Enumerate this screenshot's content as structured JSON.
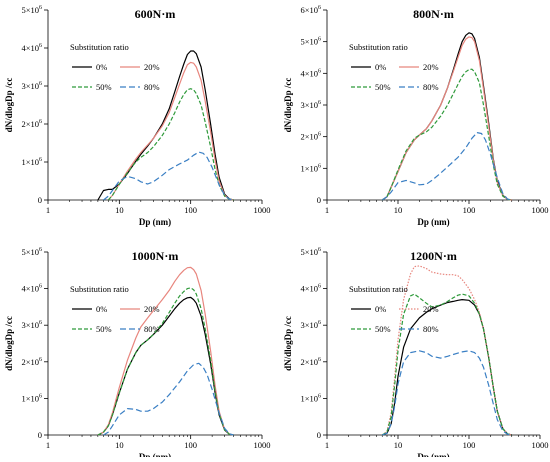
{
  "chart_data": [
    {
      "type": "line",
      "title": "600N·m",
      "xlabel": "Dp (nm)",
      "ylabel": "dN/dlogDp /cc",
      "xscale": "log",
      "xlim": [
        1,
        1000
      ],
      "ylim": [
        0,
        5000000
      ],
      "xticks": [
        "1",
        "10",
        "100",
        "1000"
      ],
      "ymax_tick": 5,
      "grid": false,
      "legend": {
        "title": "Substitution ratio",
        "placement": "top-left"
      },
      "series": [
        {
          "name": "0%",
          "color": "#000000",
          "dash": "solid",
          "x": [
            5,
            6,
            7,
            8,
            10,
            13,
            17,
            20,
            25,
            30,
            40,
            50,
            60,
            70,
            80,
            90,
            100,
            110,
            120,
            140,
            160,
            190,
            220,
            250,
            300,
            350,
            400
          ],
          "y": [
            0,
            250000,
            280000,
            280000,
            420000,
            700000,
            1020000,
            1200000,
            1420000,
            1620000,
            2000000,
            2400000,
            2850000,
            3250000,
            3580000,
            3830000,
            3920000,
            3920000,
            3850000,
            3500000,
            2900000,
            2000000,
            1200000,
            600000,
            150000,
            30000,
            0
          ]
        },
        {
          "name": "20%",
          "color": "#e8867e",
          "dash": "solid",
          "x": [
            7,
            8,
            10,
            13,
            17,
            20,
            25,
            30,
            40,
            50,
            60,
            70,
            80,
            90,
            100,
            110,
            120,
            140,
            160,
            190,
            220,
            250,
            300,
            350,
            400
          ],
          "y": [
            0,
            120000,
            420000,
            760000,
            1080000,
            1250000,
            1450000,
            1620000,
            1950000,
            2300000,
            2700000,
            3050000,
            3350000,
            3560000,
            3620000,
            3600000,
            3500000,
            3150000,
            2600000,
            1800000,
            1050000,
            500000,
            120000,
            20000,
            0
          ]
        },
        {
          "name": "50%",
          "color": "#2e9a3a",
          "dash": "4,2",
          "x": [
            7,
            8,
            10,
            13,
            17,
            20,
            25,
            30,
            40,
            50,
            60,
            70,
            80,
            90,
            100,
            110,
            120,
            140,
            160,
            190,
            220,
            250,
            300,
            350,
            400
          ],
          "y": [
            0,
            120000,
            410000,
            720000,
            1000000,
            1120000,
            1250000,
            1400000,
            1700000,
            2000000,
            2300000,
            2580000,
            2780000,
            2900000,
            2930000,
            2900000,
            2800000,
            2500000,
            2050000,
            1400000,
            800000,
            400000,
            100000,
            20000,
            0
          ]
        },
        {
          "name": "80%",
          "color": "#3a7fc4",
          "dash": "6,3",
          "x": [
            6,
            7,
            8,
            10,
            13,
            17,
            20,
            25,
            30,
            40,
            50,
            70,
            90,
            110,
            130,
            150,
            170,
            200,
            250,
            300,
            350,
            400
          ],
          "y": [
            0,
            100000,
            250000,
            500000,
            620000,
            560000,
            480000,
            420000,
            480000,
            650000,
            800000,
            950000,
            1050000,
            1180000,
            1260000,
            1230000,
            1120000,
            860000,
            400000,
            120000,
            20000,
            0
          ]
        }
      ]
    },
    {
      "type": "line",
      "title": "800N·m",
      "xlabel": "Dp (nm)",
      "ylabel": "dN/dlogDp /cc",
      "xscale": "log",
      "xlim": [
        1,
        1000
      ],
      "ylim": [
        0,
        6000000
      ],
      "xticks": [
        "1",
        "10",
        "100",
        "1000"
      ],
      "ymax_tick": 6,
      "grid": false,
      "legend": {
        "title": "Substitution ratio",
        "placement": "top-left"
      },
      "series": [
        {
          "name": "0%",
          "color": "#000000",
          "dash": "solid",
          "x": [
            6,
            7,
            8,
            10,
            13,
            17,
            20,
            25,
            30,
            40,
            50,
            60,
            70,
            80,
            90,
            100,
            110,
            120,
            140,
            160,
            190,
            220,
            250,
            300,
            350,
            400
          ],
          "y": [
            0,
            100000,
            400000,
            900000,
            1500000,
            1900000,
            2050000,
            2250000,
            2500000,
            3000000,
            3550000,
            4100000,
            4600000,
            5000000,
            5200000,
            5280000,
            5250000,
            5100000,
            4500000,
            3600000,
            2400000,
            1300000,
            600000,
            150000,
            20000,
            0
          ]
        },
        {
          "name": "20%",
          "color": "#e8867e",
          "dash": "solid",
          "x": [
            6,
            7,
            8,
            10,
            13,
            17,
            20,
            25,
            30,
            40,
            50,
            60,
            70,
            80,
            90,
            100,
            110,
            120,
            140,
            160,
            190,
            220,
            250,
            300,
            350,
            400
          ],
          "y": [
            0,
            100000,
            400000,
            900000,
            1500000,
            1900000,
            2050000,
            2250000,
            2500000,
            3000000,
            3550000,
            4050000,
            4500000,
            4880000,
            5080000,
            5150000,
            5130000,
            5000000,
            4400000,
            3500000,
            2300000,
            1250000,
            550000,
            130000,
            20000,
            0
          ]
        },
        {
          "name": "50%",
          "color": "#2e9a3a",
          "dash": "4,2",
          "x": [
            6,
            7,
            8,
            10,
            13,
            17,
            20,
            25,
            30,
            40,
            50,
            60,
            70,
            80,
            90,
            100,
            110,
            120,
            140,
            160,
            190,
            220,
            250,
            300,
            350,
            400
          ],
          "y": [
            0,
            100000,
            400000,
            950000,
            1550000,
            1950000,
            2050000,
            2150000,
            2300000,
            2650000,
            3000000,
            3350000,
            3650000,
            3900000,
            4050000,
            4120000,
            4130000,
            4050000,
            3700000,
            3000000,
            2000000,
            1100000,
            500000,
            120000,
            20000,
            0
          ]
        },
        {
          "name": "80%",
          "color": "#3a7fc4",
          "dash": "6,3",
          "x": [
            6,
            7,
            8,
            10,
            13,
            17,
            20,
            25,
            30,
            40,
            50,
            70,
            90,
            110,
            130,
            150,
            170,
            200,
            250,
            300,
            350,
            400
          ],
          "y": [
            0,
            100000,
            250000,
            550000,
            620000,
            540000,
            480000,
            500000,
            620000,
            850000,
            1050000,
            1350000,
            1650000,
            1950000,
            2130000,
            2100000,
            1900000,
            1450000,
            700000,
            200000,
            30000,
            0
          ]
        }
      ]
    },
    {
      "type": "line",
      "title": "1000N·m",
      "xlabel": "Dp (nm)",
      "ylabel": "dN/dlogDp /cc",
      "xscale": "log",
      "xlim": [
        1,
        1000
      ],
      "ylim": [
        0,
        5000000
      ],
      "xticks": [
        "1",
        "10",
        "100",
        "1000"
      ],
      "ymax_tick": 5,
      "grid": false,
      "legend": {
        "title": "Substitution ratio",
        "placement": "top-left"
      },
      "series": [
        {
          "name": "0%",
          "color": "#000000",
          "dash": "solid",
          "x": [
            5,
            6,
            7,
            8,
            10,
            13,
            17,
            20,
            25,
            30,
            40,
            50,
            60,
            70,
            80,
            90,
            100,
            110,
            120,
            140,
            160,
            190,
            220,
            250,
            300,
            350,
            400
          ],
          "y": [
            0,
            80000,
            250000,
            550000,
            1150000,
            1800000,
            2250000,
            2450000,
            2600000,
            2750000,
            3000000,
            3250000,
            3450000,
            3600000,
            3700000,
            3750000,
            3760000,
            3700000,
            3600000,
            3250000,
            2750000,
            1950000,
            1150000,
            550000,
            130000,
            20000,
            0
          ]
        },
        {
          "name": "20%",
          "color": "#e8867e",
          "dash": "solid",
          "x": [
            5,
            6,
            7,
            8,
            10,
            13,
            17,
            20,
            25,
            30,
            40,
            50,
            60,
            70,
            80,
            90,
            100,
            110,
            120,
            140,
            160,
            190,
            220,
            250,
            300,
            350,
            400
          ],
          "y": [
            0,
            80000,
            280000,
            600000,
            1300000,
            2050000,
            2650000,
            2950000,
            3200000,
            3400000,
            3700000,
            3950000,
            4200000,
            4380000,
            4500000,
            4570000,
            4580000,
            4520000,
            4400000,
            3950000,
            3300000,
            2300000,
            1350000,
            650000,
            150000,
            25000,
            0
          ]
        },
        {
          "name": "50%",
          "color": "#2e9a3a",
          "dash": "4,2",
          "x": [
            5,
            6,
            7,
            8,
            10,
            13,
            17,
            20,
            25,
            30,
            40,
            50,
            60,
            70,
            80,
            90,
            100,
            110,
            120,
            140,
            160,
            190,
            220,
            250,
            300,
            350,
            400
          ],
          "y": [
            0,
            80000,
            250000,
            550000,
            1150000,
            1800000,
            2250000,
            2450000,
            2600000,
            2750000,
            3050000,
            3350000,
            3600000,
            3800000,
            3920000,
            4000000,
            4020000,
            3970000,
            3850000,
            3450000,
            2900000,
            2050000,
            1200000,
            580000,
            140000,
            20000,
            0
          ]
        },
        {
          "name": "80%",
          "color": "#3a7fc4",
          "dash": "6,3",
          "x": [
            6,
            7,
            8,
            10,
            13,
            17,
            20,
            25,
            30,
            40,
            50,
            70,
            90,
            110,
            130,
            150,
            170,
            200,
            250,
            300,
            350,
            400
          ],
          "y": [
            0,
            80000,
            250000,
            550000,
            720000,
            700000,
            650000,
            650000,
            720000,
            900000,
            1100000,
            1450000,
            1750000,
            1920000,
            1960000,
            1850000,
            1650000,
            1250000,
            600000,
            180000,
            30000,
            0
          ]
        }
      ]
    },
    {
      "type": "line",
      "title": "1200N·m",
      "xlabel": "Dp (nm)",
      "ylabel": "dN/dlogDp /cc",
      "xscale": "log",
      "xlim": [
        1,
        1000
      ],
      "ylim": [
        0,
        5000000
      ],
      "xticks": [
        "1",
        "10",
        "100",
        "1000"
      ],
      "ymax_tick": 5,
      "grid": false,
      "legend": {
        "title": "Substitution ratio",
        "placement": "top-left"
      },
      "series": [
        {
          "name": "0%",
          "color": "#000000",
          "dash": "solid",
          "x": [
            6,
            7,
            8,
            9,
            10,
            12,
            15,
            20,
            25,
            30,
            40,
            50,
            60,
            70,
            80,
            100,
            120,
            140,
            160,
            190,
            220,
            250,
            300,
            350,
            400
          ],
          "y": [
            0,
            50000,
            300000,
            900000,
            1600000,
            2400000,
            2900000,
            3200000,
            3350000,
            3450000,
            3550000,
            3620000,
            3650000,
            3680000,
            3700000,
            3680000,
            3550000,
            3300000,
            2900000,
            2100000,
            1300000,
            650000,
            170000,
            30000,
            0
          ]
        },
        {
          "name": "20%",
          "color": "#e8867e",
          "dash": "1.5,1.5",
          "x": [
            6,
            7,
            8,
            9,
            10,
            12,
            15,
            17,
            20,
            25,
            30,
            40,
            50,
            60,
            70,
            80,
            100,
            120,
            140,
            160,
            190,
            220,
            250,
            300,
            350,
            400
          ],
          "y": [
            0,
            100000,
            600000,
            1600000,
            2600000,
            3700000,
            4400000,
            4600000,
            4620000,
            4550000,
            4450000,
            4400000,
            4380000,
            4380000,
            4350000,
            4250000,
            4000000,
            3700000,
            3350000,
            2900000,
            2100000,
            1300000,
            650000,
            170000,
            30000,
            0
          ]
        },
        {
          "name": "50%",
          "color": "#2e9a3a",
          "dash": "4,2",
          "x": [
            6,
            7,
            8,
            9,
            10,
            12,
            15,
            17,
            20,
            25,
            30,
            40,
            50,
            60,
            70,
            80,
            100,
            120,
            140,
            160,
            190,
            220,
            250,
            300,
            350,
            400
          ],
          "y": [
            0,
            80000,
            500000,
            1400000,
            2300000,
            3300000,
            3800000,
            3850000,
            3750000,
            3600000,
            3500000,
            3550000,
            3650000,
            3750000,
            3820000,
            3850000,
            3800000,
            3600000,
            3300000,
            2900000,
            2100000,
            1300000,
            650000,
            170000,
            30000,
            0
          ]
        },
        {
          "name": "80%",
          "color": "#3a7fc4",
          "dash": "6,3",
          "x": [
            6,
            7,
            8,
            9,
            10,
            12,
            15,
            20,
            25,
            30,
            40,
            50,
            60,
            80,
            100,
            120,
            140,
            160,
            190,
            220,
            250,
            300,
            350,
            400
          ],
          "y": [
            0,
            50000,
            300000,
            800000,
            1400000,
            2000000,
            2250000,
            2300000,
            2250000,
            2150000,
            2100000,
            2150000,
            2200000,
            2270000,
            2300000,
            2250000,
            2100000,
            1850000,
            1350000,
            850000,
            420000,
            110000,
            20000,
            0
          ]
        }
      ]
    }
  ]
}
